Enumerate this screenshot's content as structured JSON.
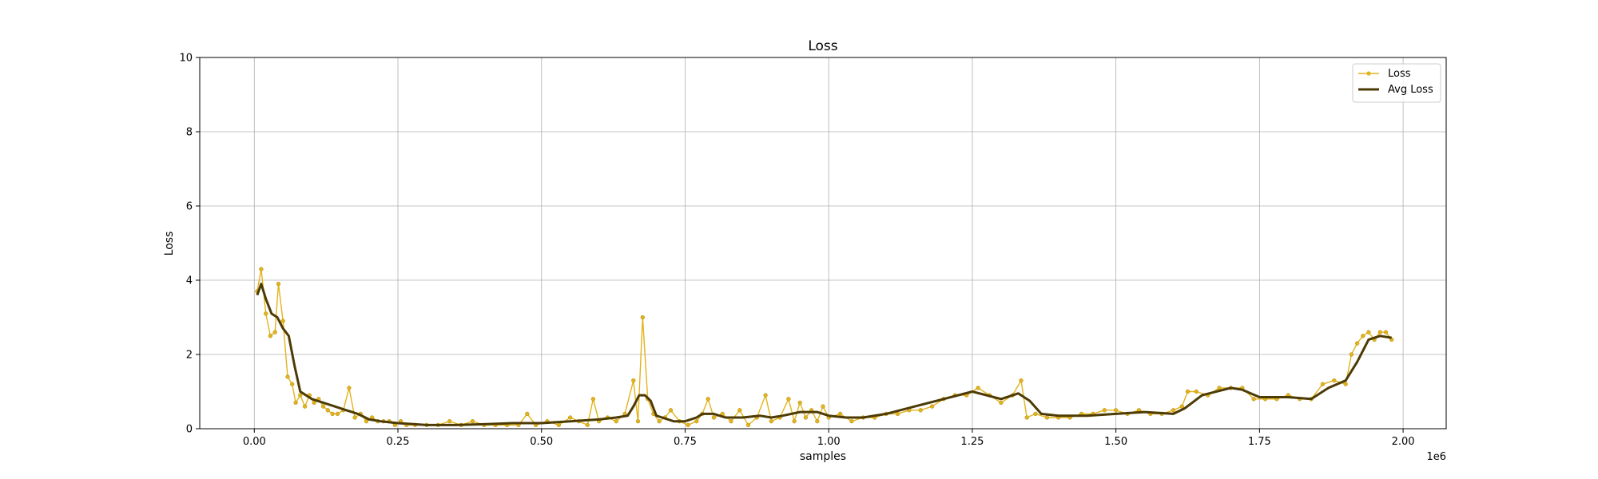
{
  "chart_data": {
    "type": "line",
    "title": "Loss",
    "xlabel": "samples",
    "ylabel": "Loss",
    "x_offset_text": "1e6",
    "xlim": [
      -0.095,
      2.075
    ],
    "ylim": [
      0,
      10
    ],
    "x_ticks": [
      0.0,
      0.25,
      0.5,
      0.75,
      1.0,
      1.25,
      1.5,
      1.75,
      2.0
    ],
    "x_tick_labels": [
      "0.00",
      "0.25",
      "0.50",
      "0.75",
      "1.00",
      "1.25",
      "1.50",
      "1.75",
      "2.00"
    ],
    "y_ticks": [
      0,
      2,
      4,
      6,
      8,
      10
    ],
    "y_tick_labels": [
      "0",
      "2",
      "4",
      "6",
      "8",
      "10"
    ],
    "grid": true,
    "legend_position": "top-right",
    "colors": {
      "loss": "#e3b31b",
      "avg_loss": "#4d3b05"
    },
    "series": [
      {
        "name": "Loss",
        "style": "line-with-markers",
        "x": [
          0.005,
          0.012,
          0.02,
          0.028,
          0.036,
          0.042,
          0.05,
          0.058,
          0.066,
          0.072,
          0.08,
          0.088,
          0.096,
          0.104,
          0.112,
          0.12,
          0.128,
          0.136,
          0.145,
          0.155,
          0.165,
          0.175,
          0.185,
          0.195,
          0.205,
          0.215,
          0.225,
          0.235,
          0.245,
          0.255,
          0.265,
          0.28,
          0.3,
          0.32,
          0.34,
          0.36,
          0.38,
          0.4,
          0.42,
          0.44,
          0.46,
          0.475,
          0.49,
          0.51,
          0.53,
          0.55,
          0.565,
          0.58,
          0.59,
          0.6,
          0.615,
          0.63,
          0.645,
          0.66,
          0.668,
          0.676,
          0.685,
          0.695,
          0.705,
          0.715,
          0.725,
          0.74,
          0.755,
          0.77,
          0.78,
          0.79,
          0.8,
          0.815,
          0.83,
          0.845,
          0.86,
          0.875,
          0.89,
          0.9,
          0.915,
          0.93,
          0.94,
          0.95,
          0.96,
          0.97,
          0.98,
          0.99,
          1.0,
          1.02,
          1.04,
          1.06,
          1.08,
          1.1,
          1.12,
          1.14,
          1.16,
          1.18,
          1.2,
          1.22,
          1.24,
          1.26,
          1.28,
          1.3,
          1.32,
          1.335,
          1.345,
          1.36,
          1.38,
          1.4,
          1.42,
          1.44,
          1.46,
          1.48,
          1.5,
          1.52,
          1.54,
          1.56,
          1.58,
          1.6,
          1.615,
          1.625,
          1.64,
          1.66,
          1.68,
          1.7,
          1.72,
          1.74,
          1.76,
          1.78,
          1.8,
          1.82,
          1.84,
          1.86,
          1.88,
          1.9,
          1.91,
          1.92,
          1.93,
          1.94,
          1.95,
          1.96,
          1.97,
          1.98
        ],
        "y": [
          3.7,
          4.3,
          3.1,
          2.5,
          2.6,
          3.9,
          2.9,
          1.4,
          1.2,
          0.7,
          0.9,
          0.6,
          0.9,
          0.7,
          0.8,
          0.6,
          0.5,
          0.4,
          0.4,
          0.5,
          1.1,
          0.3,
          0.4,
          0.2,
          0.3,
          0.2,
          0.2,
          0.2,
          0.1,
          0.2,
          0.1,
          0.1,
          0.1,
          0.1,
          0.2,
          0.1,
          0.2,
          0.1,
          0.1,
          0.1,
          0.1,
          0.4,
          0.1,
          0.2,
          0.1,
          0.3,
          0.2,
          0.1,
          0.8,
          0.2,
          0.3,
          0.2,
          0.4,
          1.3,
          0.2,
          3.0,
          0.8,
          0.4,
          0.2,
          0.3,
          0.5,
          0.2,
          0.1,
          0.2,
          0.4,
          0.8,
          0.3,
          0.4,
          0.2,
          0.5,
          0.1,
          0.3,
          0.9,
          0.2,
          0.3,
          0.8,
          0.2,
          0.7,
          0.3,
          0.5,
          0.2,
          0.6,
          0.3,
          0.4,
          0.2,
          0.3,
          0.3,
          0.4,
          0.4,
          0.5,
          0.5,
          0.6,
          0.8,
          0.9,
          0.9,
          1.1,
          0.9,
          0.7,
          0.9,
          1.3,
          0.3,
          0.4,
          0.3,
          0.3,
          0.3,
          0.4,
          0.4,
          0.5,
          0.5,
          0.4,
          0.5,
          0.4,
          0.4,
          0.5,
          0.6,
          1.0,
          1.0,
          0.9,
          1.1,
          1.1,
          1.1,
          0.8,
          0.8,
          0.8,
          0.9,
          0.8,
          0.8,
          1.2,
          1.3,
          1.2,
          2.0,
          2.3,
          2.5,
          2.6,
          2.4,
          2.6,
          2.6,
          2.4
        ]
      },
      {
        "name": "Avg Loss",
        "style": "line",
        "x": [
          0.005,
          0.012,
          0.02,
          0.03,
          0.04,
          0.05,
          0.06,
          0.07,
          0.08,
          0.09,
          0.1,
          0.12,
          0.14,
          0.16,
          0.17,
          0.18,
          0.2,
          0.22,
          0.25,
          0.3,
          0.35,
          0.4,
          0.45,
          0.5,
          0.55,
          0.6,
          0.63,
          0.65,
          0.66,
          0.67,
          0.68,
          0.69,
          0.7,
          0.71,
          0.73,
          0.75,
          0.77,
          0.78,
          0.8,
          0.82,
          0.85,
          0.88,
          0.9,
          0.92,
          0.95,
          0.98,
          1.0,
          1.03,
          1.06,
          1.1,
          1.15,
          1.2,
          1.25,
          1.3,
          1.33,
          1.35,
          1.37,
          1.4,
          1.45,
          1.5,
          1.55,
          1.6,
          1.62,
          1.65,
          1.7,
          1.72,
          1.75,
          1.8,
          1.84,
          1.87,
          1.9,
          1.92,
          1.94,
          1.96,
          1.98
        ],
        "y": [
          3.6,
          3.9,
          3.5,
          3.1,
          3.0,
          2.7,
          2.5,
          1.7,
          1.0,
          0.9,
          0.8,
          0.7,
          0.6,
          0.5,
          0.45,
          0.4,
          0.25,
          0.2,
          0.15,
          0.1,
          0.1,
          0.12,
          0.15,
          0.15,
          0.2,
          0.25,
          0.3,
          0.35,
          0.6,
          0.9,
          0.9,
          0.75,
          0.35,
          0.3,
          0.2,
          0.2,
          0.3,
          0.4,
          0.4,
          0.3,
          0.3,
          0.35,
          0.3,
          0.35,
          0.45,
          0.45,
          0.35,
          0.3,
          0.3,
          0.4,
          0.6,
          0.8,
          1.0,
          0.8,
          0.95,
          0.75,
          0.4,
          0.35,
          0.35,
          0.4,
          0.45,
          0.4,
          0.55,
          0.9,
          1.1,
          1.05,
          0.85,
          0.85,
          0.8,
          1.1,
          1.3,
          1.8,
          2.4,
          2.5,
          2.45
        ]
      }
    ]
  }
}
